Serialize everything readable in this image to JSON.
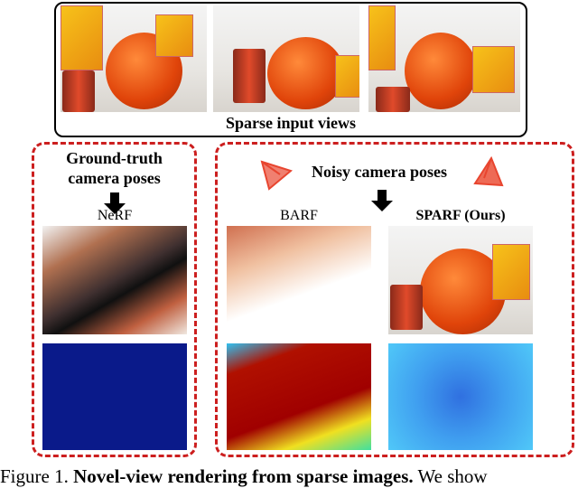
{
  "top": {
    "label": "Sparse input views"
  },
  "left_panel": {
    "title_line1": "Ground-truth",
    "title_line2": "camera poses",
    "method": "NeRF"
  },
  "right_panel": {
    "title": "Noisy camera poses",
    "methods": [
      "BARF",
      "SPARF (Ours)"
    ]
  },
  "caption": {
    "prefix": "Figure 1.",
    "bold": "Novel-view rendering from sparse images.",
    "rest": "We show"
  },
  "colors": {
    "dashed_border": "#cc1f1f",
    "camera_icon": "#e8452f",
    "nerf_depth": "#0a1a8a",
    "sparf_depth": "#3aa0f0"
  }
}
